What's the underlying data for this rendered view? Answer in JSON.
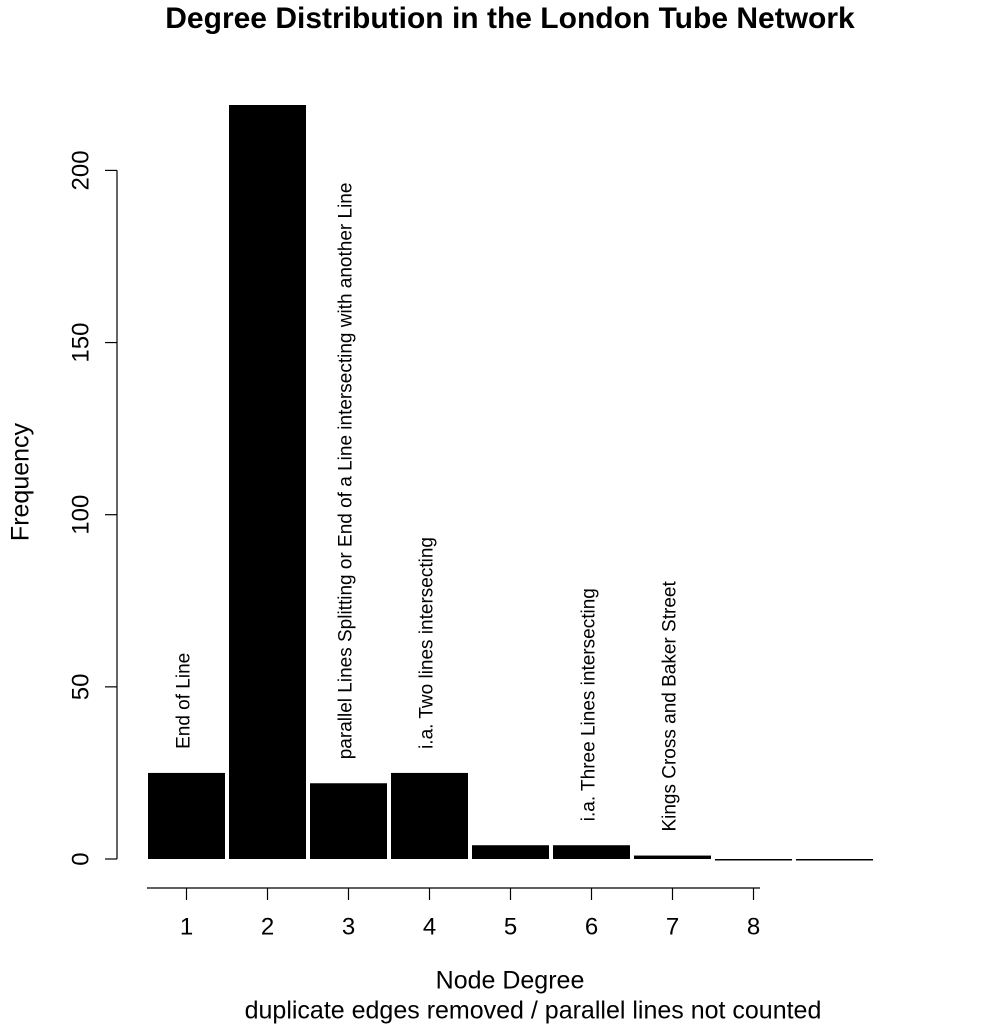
{
  "chart_data": {
    "type": "bar",
    "title": "Degree Distribution in the London Tube Network",
    "xlabel": "Node Degree",
    "subtitle": "duplicate edges removed / parallel lines not counted",
    "ylabel": "Frequency",
    "categories": [
      "1",
      "2",
      "3",
      "4",
      "5",
      "6",
      "7",
      "8",
      null
    ],
    "values": [
      25,
      219,
      22,
      25,
      4,
      4,
      1,
      0,
      0
    ],
    "bar_labels": [
      "End of Line",
      null,
      "parallel Lines Splitting or End of a Line intersecting with another Line",
      "i.a. Two lines intersecting",
      null,
      "i.a. Three Lines intersecting",
      "Kings Cross and Baker Street",
      null,
      null
    ],
    "color": "#000000",
    "ylim": [
      0,
      219
    ],
    "yticks": [
      0,
      50,
      100,
      150,
      200
    ],
    "grid": false
  }
}
